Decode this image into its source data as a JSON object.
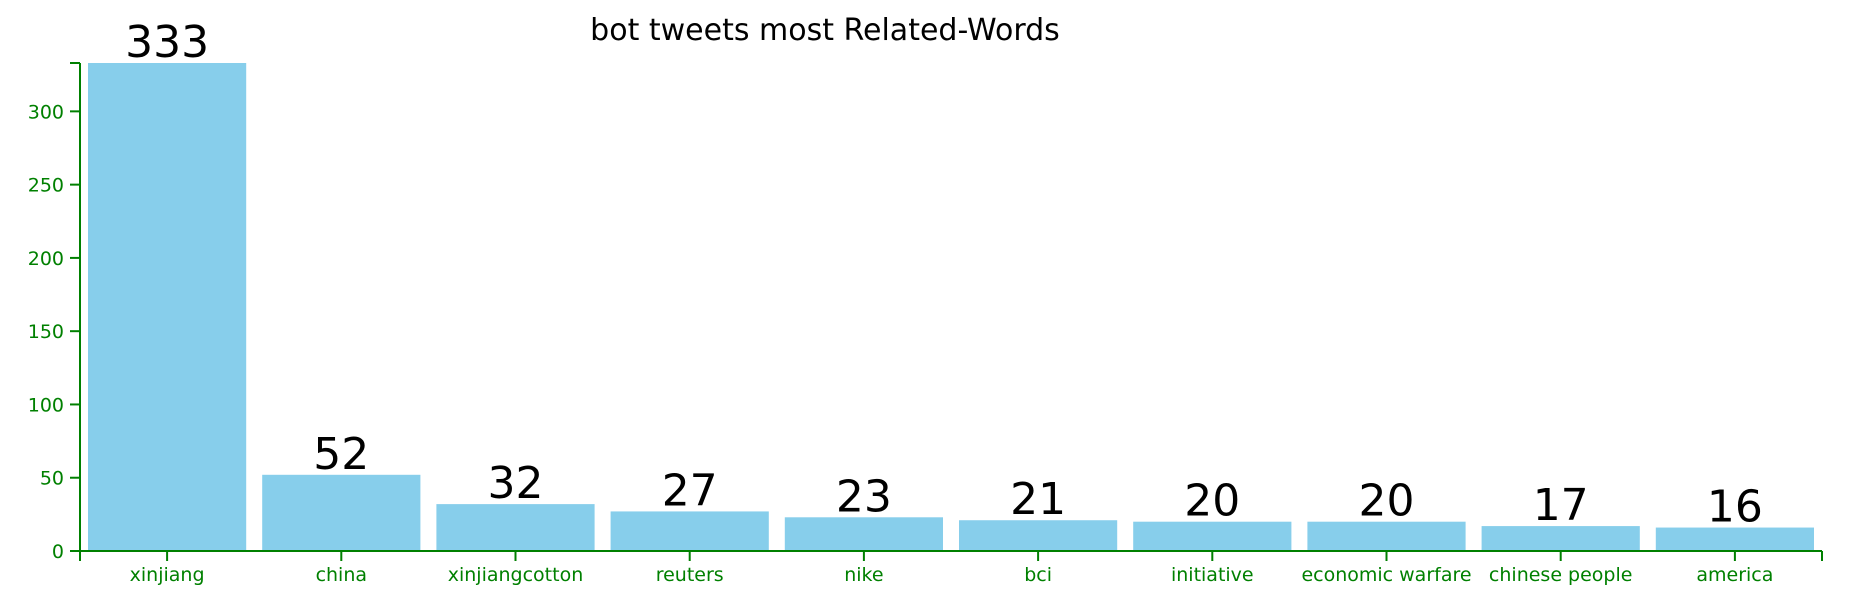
{
  "chart_data": {
    "type": "bar",
    "title": "bot tweets most Related-Words",
    "xlabel": "",
    "ylabel": "",
    "categories": [
      "xinjiang",
      "china",
      "xinjiangcotton",
      "reuters",
      "nike",
      "bci",
      "initiative",
      "economic warfare",
      "chinese people",
      "america"
    ],
    "values": [
      333,
      52,
      32,
      27,
      23,
      21,
      20,
      20,
      17,
      16
    ],
    "ylim": [
      0,
      333
    ],
    "yticks": [
      0,
      50,
      100,
      150,
      200,
      250,
      300
    ],
    "data_labels": true,
    "grid": false,
    "legend": "none",
    "colors": {
      "bar": "#87ceeb",
      "axis": "#008000",
      "text": "#000000"
    }
  }
}
